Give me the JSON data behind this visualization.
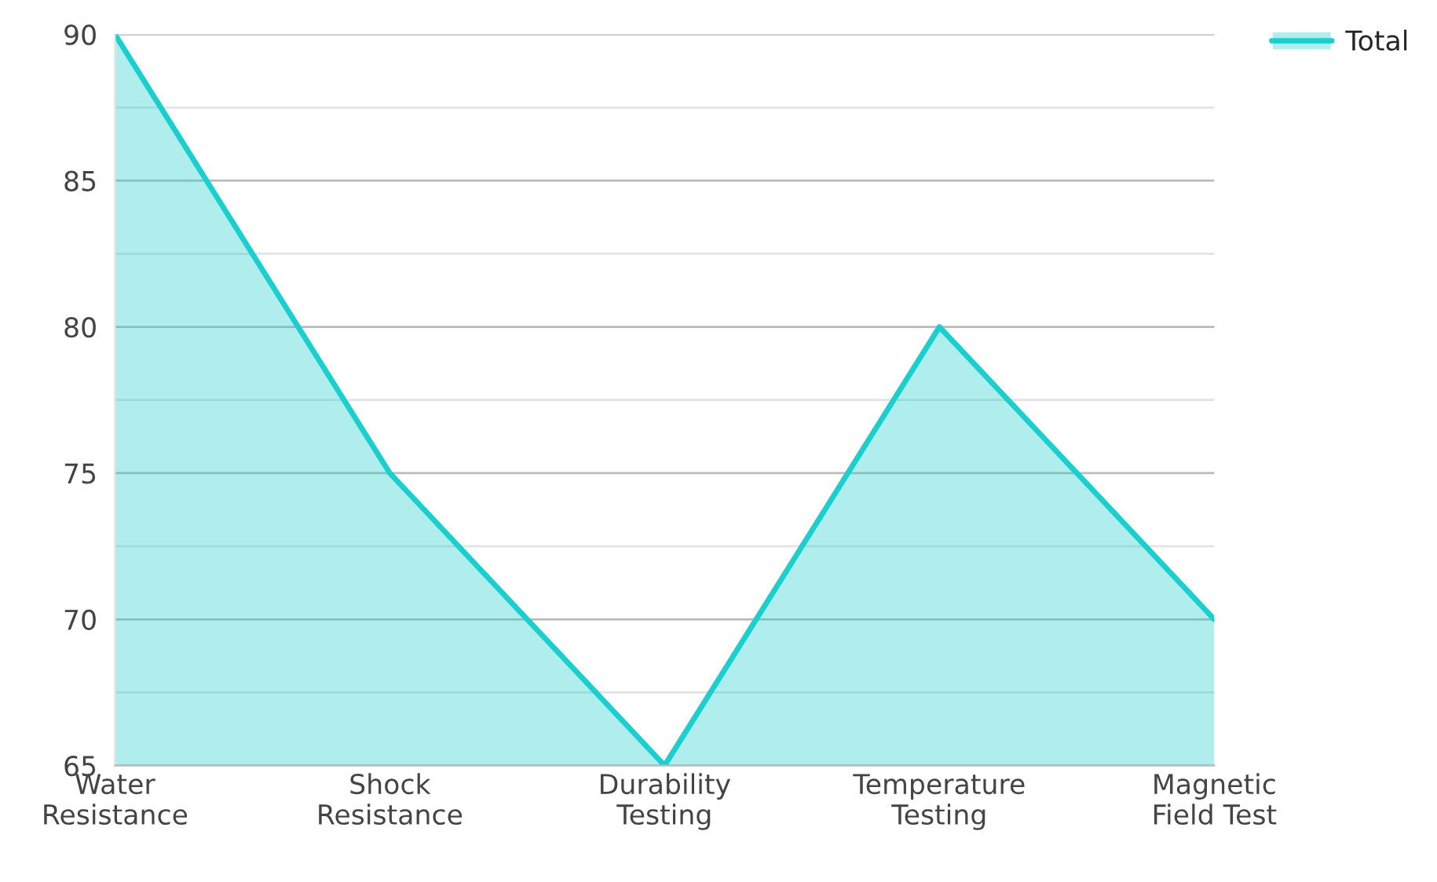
{
  "chart_data": {
    "type": "area",
    "categories": [
      "Water Resistance",
      "Shock Resistance",
      "Durability Testing",
      "Temperature Testing",
      "Magnetic Field Test"
    ],
    "series": [
      {
        "name": "Total",
        "color": "#1ccfcf",
        "values": [
          90,
          75,
          65,
          80,
          70
        ]
      }
    ],
    "ylim": [
      65,
      90
    ],
    "yticks": [
      65,
      {
        "value": 67.5,
        "label": null
      },
      70,
      {
        "value": 72.5,
        "label": null
      },
      75,
      {
        "value": 77.5,
        "label": null
      },
      80,
      {
        "value": 82.5,
        "label": null
      },
      85,
      {
        "value": 87.5,
        "label": null
      },
      90
    ],
    "grid": "y",
    "legend": "top right",
    "line_style": "solid",
    "marker": "none"
  }
}
